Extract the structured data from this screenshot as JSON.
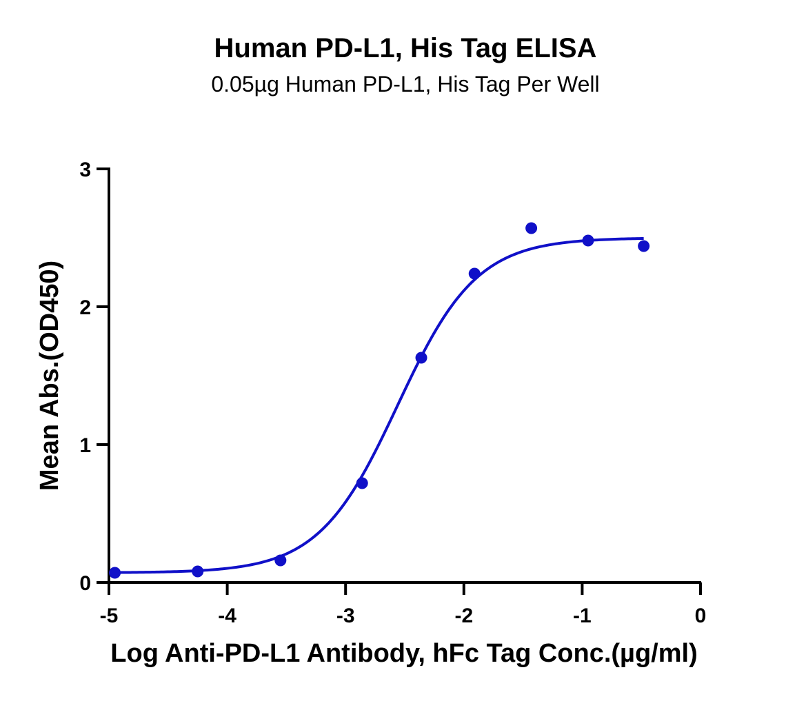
{
  "chart_data": {
    "type": "scatter",
    "title": "Human PD-L1, His Tag ELISA",
    "subtitle": "0.05µg Human PD-L1, His Tag Per Well",
    "xlabel": "Log Anti-PD-L1 Antibody, hFc Tag Conc.(µg/ml)",
    "ylabel": "Mean Abs.(OD450)",
    "xlim": [
      -5,
      0
    ],
    "ylim": [
      0,
      3
    ],
    "xticks": [
      "-5",
      "-4",
      "-3",
      "-2",
      "-1",
      "0"
    ],
    "yticks": [
      "0",
      "1",
      "2",
      "3"
    ],
    "grid": false,
    "series": [
      {
        "color": "#1010c8",
        "x": [
          -4.95,
          -4.25,
          -3.55,
          -2.86,
          -2.36,
          -1.91,
          -1.43,
          -0.95,
          -0.48
        ],
        "y": [
          0.07,
          0.08,
          0.16,
          0.72,
          1.63,
          2.24,
          2.57,
          2.48,
          2.44
        ],
        "fit": {
          "model": "4PL",
          "bottom": 0.07,
          "top": 2.5,
          "log_ec50": -2.56,
          "hill": 1.3,
          "x_range": [
            -4.95,
            -0.48
          ]
        }
      }
    ]
  }
}
